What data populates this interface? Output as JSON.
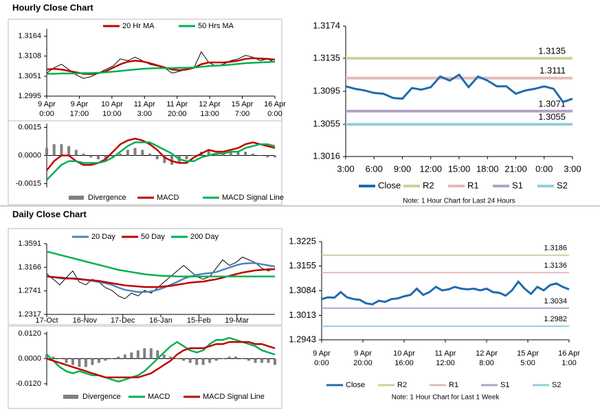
{
  "headings": [
    "Hourly Close Chart",
    "Daily Close Chart"
  ],
  "chart_data": [
    {
      "type": "line",
      "ylim": [
        1.2995,
        1.3185
      ],
      "yticks": [
        1.2995,
        1.3051,
        1.3108,
        1.3164
      ],
      "x_labels": [
        [
          "9 Apr",
          "0:00"
        ],
        [
          "9 Apr",
          "17:00"
        ],
        [
          "10 Apr",
          "10:00"
        ],
        [
          "11 Apr",
          "3:00"
        ],
        [
          "11 Apr",
          "20:00"
        ],
        [
          "12 Apr",
          "13:00"
        ],
        [
          "15 Apr",
          "7:00"
        ],
        [
          "16 Apr",
          "0:00"
        ]
      ],
      "series": [
        {
          "color": "#000000",
          "values": [
            1.306,
            1.3075,
            1.3085,
            1.307,
            1.3055,
            1.3045,
            1.305,
            1.306,
            1.307,
            1.308,
            1.31,
            1.3095,
            1.3105,
            1.3095,
            1.3085,
            1.308,
            1.3075,
            1.306,
            1.3065,
            1.307,
            1.3075,
            1.312,
            1.309,
            1.308,
            1.3085,
            1.3095,
            1.31,
            1.311,
            1.3105,
            1.3095,
            1.31,
            1.309
          ]
        },
        {
          "name": "20 Hr MA",
          "color": "#c00000",
          "values": [
            1.307,
            1.3072,
            1.307,
            1.3066,
            1.3062,
            1.3058,
            1.3057,
            1.306,
            1.3065,
            1.3075,
            1.3085,
            1.3092,
            1.3095,
            1.3093,
            1.3088,
            1.3082,
            1.3076,
            1.307,
            1.3068,
            1.307,
            1.3075,
            1.3085,
            1.309,
            1.309,
            1.309,
            1.3092,
            1.3095,
            1.31,
            1.3102,
            1.3101,
            1.31,
            1.3098
          ]
        },
        {
          "name": "50 Hrs MA",
          "color": "#00b050",
          "values": [
            1.3058,
            1.3058,
            1.3059,
            1.3059,
            1.3059,
            1.306,
            1.306,
            1.3061,
            1.3062,
            1.3064,
            1.3066,
            1.3068,
            1.307,
            1.3072,
            1.3073,
            1.3074,
            1.3074,
            1.3074,
            1.3075,
            1.3075,
            1.3076,
            1.3078,
            1.308,
            1.3081,
            1.3082,
            1.3084,
            1.3086,
            1.3088,
            1.3089,
            1.309,
            1.3091,
            1.3092
          ]
        }
      ]
    },
    {
      "type": "macd",
      "ylim": [
        -0.0017,
        0.0017
      ],
      "yticks": [
        -0.0015,
        {
          "value": 0,
          "label": "0.0000"
        },
        0.0015
      ],
      "series": [
        {
          "name": "Divergence",
          "type": "bar",
          "color": "#808080",
          "values": [
            0.0004,
            0.0006,
            0.0006,
            0.0005,
            0.0003,
            0.0001,
            -0.0001,
            -0.0002,
            -0.0002,
            -0.0001,
            0.0001,
            0.0003,
            0.0004,
            0.0003,
            0.0001,
            -0.0002,
            -0.0004,
            -0.0005,
            -0.0004,
            -0.0002,
            0,
            0.0002,
            0.0003,
            0.0001,
            0.0001,
            0.0002,
            0.0002,
            0.0002,
            0.0001,
            0,
            -0.0001,
            -0.0001
          ]
        },
        {
          "name": "MACD",
          "color": "#c00000",
          "values": [
            -0.0008,
            -0.0003,
            0,
            0,
            -0.0003,
            -0.0005,
            -0.0005,
            -0.0004,
            -0.0002,
            0.0002,
            0.0006,
            0.0008,
            0.0009,
            0.0008,
            0.0006,
            0.0003,
            -0.0001,
            -0.0003,
            -0.0004,
            -0.0004,
            -0.0001,
            0.0001,
            0.0003,
            0.0002,
            0.0002,
            0.0003,
            0.0004,
            0.0006,
            0.0007,
            0.0006,
            0.0005,
            0.0004
          ]
        },
        {
          "name": "MACD Signal Line",
          "color": "#00b050",
          "values": [
            -0.0013,
            -0.0009,
            -0.0005,
            -0.0003,
            -0.0003,
            -0.0004,
            -0.0004,
            -0.0004,
            -0.0003,
            -0.0001,
            0.0002,
            0.0005,
            0.0007,
            0.0007,
            0.0007,
            0.0005,
            0.0003,
            0.0001,
            -0.0002,
            -0.0003,
            -0.0003,
            -0.0001,
            0,
            0.0001,
            0.0001,
            0.0002,
            0.0002,
            0.0004,
            0.0005,
            0.0006,
            0.0006,
            0.0005
          ]
        }
      ]
    },
    {
      "type": "levels",
      "ylim": [
        1.3016,
        1.3174
      ],
      "yticks": [
        1.3016,
        1.3055,
        1.3095,
        1.3135,
        1.3174
      ],
      "x_labels": [
        [
          "3:00"
        ],
        [
          "6:00"
        ],
        [
          "9:00"
        ],
        [
          "12:00"
        ],
        [
          "15:00"
        ],
        [
          "18:00"
        ],
        [
          "21:00"
        ],
        [
          "0:00"
        ],
        [
          "3:00"
        ]
      ],
      "series": [
        {
          "name": "Close",
          "color": "#1f6bb0",
          "values": [
            1.3101,
            1.3098,
            1.3096,
            1.3093,
            1.3092,
            1.3087,
            1.3086,
            1.3099,
            1.3097,
            1.31,
            1.3113,
            1.3108,
            1.3115,
            1.31,
            1.3113,
            1.3108,
            1.3101,
            1.3101,
            1.3092,
            1.3096,
            1.3098,
            1.3101,
            1.3098,
            1.3082,
            1.3086
          ]
        }
      ],
      "levels": [
        {
          "name": "R2",
          "color": "#c3d69b",
          "value": 1.3135
        },
        {
          "name": "R1",
          "color": "#e6b9b8",
          "value": 1.3111
        },
        {
          "name": "S1",
          "color": "#b3a2c7",
          "value": 1.3071
        },
        {
          "name": "S2",
          "color": "#93cddd",
          "value": 1.3055
        }
      ],
      "note": "Note: 1 Hour Chart for Last 24 Hours"
    },
    {
      "type": "line",
      "ylim": [
        1.2317,
        1.3591
      ],
      "yticks": [
        1.2317,
        1.2741,
        1.3166,
        1.3591
      ],
      "x_labels": [
        [
          "17-Oct"
        ],
        [
          "16-Nov"
        ],
        [
          "17-Dec"
        ],
        [
          "16-Jan"
        ],
        [
          "15-Feb"
        ],
        [
          "19-Mar"
        ]
      ],
      "series": [
        {
          "color": "#000000",
          "values": [
            1.305,
            1.295,
            1.285,
            1.298,
            1.31,
            1.29,
            1.285,
            1.295,
            1.29,
            1.28,
            1.275,
            1.265,
            1.26,
            1.27,
            1.265,
            1.275,
            1.27,
            1.28,
            1.29,
            1.3,
            1.31,
            1.32,
            1.31,
            1.3,
            1.295,
            1.3,
            1.315,
            1.33,
            1.32,
            1.325,
            1.335,
            1.33,
            1.325,
            1.315,
            1.31,
            1.315
          ]
        },
        {
          "name": "20 Day",
          "color": "#4f81bd",
          "values": [
            1.3,
            1.299,
            1.297,
            1.296,
            1.297,
            1.296,
            1.294,
            1.292,
            1.29,
            1.288,
            1.285,
            1.28,
            1.276,
            1.274,
            1.272,
            1.272,
            1.273,
            1.276,
            1.28,
            1.285,
            1.29,
            1.296,
            1.3,
            1.303,
            1.305,
            1.306,
            1.308,
            1.312,
            1.316,
            1.32,
            1.323,
            1.324,
            1.324,
            1.322,
            1.32,
            1.318
          ]
        },
        {
          "name": "50 Day",
          "color": "#c00000",
          "values": [
            1.3,
            1.299,
            1.298,
            1.297,
            1.296,
            1.295,
            1.294,
            1.293,
            1.292,
            1.29,
            1.288,
            1.286,
            1.284,
            1.283,
            1.282,
            1.281,
            1.281,
            1.281,
            1.282,
            1.283,
            1.285,
            1.287,
            1.289,
            1.29,
            1.291,
            1.293,
            1.295,
            1.298,
            1.301,
            1.304,
            1.307,
            1.309,
            1.311,
            1.312,
            1.313,
            1.313
          ]
        },
        {
          "name": "200 Day",
          "color": "#00b050",
          "values": [
            1.345,
            1.342,
            1.339,
            1.336,
            1.333,
            1.33,
            1.327,
            1.324,
            1.321,
            1.318,
            1.315,
            1.312,
            1.31,
            1.308,
            1.306,
            1.304,
            1.303,
            1.302,
            1.301,
            1.301,
            1.3,
            1.3,
            1.3,
            1.3,
            1.3,
            1.3,
            1.3,
            1.3,
            1.3,
            1.3,
            1.3,
            1.3,
            1.3,
            1.3,
            1.3,
            1.3
          ]
        }
      ]
    },
    {
      "type": "macd",
      "ylim": [
        -0.013,
        0.013
      ],
      "yticks": [
        {
          "value": -0.012,
          "label": "-0.0120"
        },
        {
          "value": 0,
          "label": "0.0000"
        },
        {
          "value": 0.012,
          "label": "0.0120"
        }
      ],
      "series": [
        {
          "name": "Divergence",
          "type": "bar",
          "color": "#808080",
          "values": [
            0.002,
            0.001,
            0,
            -0.002,
            -0.003,
            -0.004,
            -0.004,
            -0.003,
            -0.002,
            -0.001,
            0,
            0.001,
            0.002,
            0.003,
            0.004,
            0.005,
            0.005,
            0.004,
            0.002,
            0.001,
            0,
            -0.001,
            -0.002,
            -0.003,
            -0.003,
            -0.002,
            -0.001,
            0,
            0.001,
            0.001,
            0,
            -0.001,
            -0.002,
            -0.002,
            -0.002,
            -0.003
          ]
        },
        {
          "name": "MACD",
          "color": "#00b050",
          "values": [
            0.002,
            -0.001,
            -0.004,
            -0.006,
            -0.007,
            -0.006,
            -0.007,
            -0.008,
            -0.008,
            -0.009,
            -0.01,
            -0.011,
            -0.01,
            -0.009,
            -0.008,
            -0.006,
            -0.003,
            0,
            0.003,
            0.006,
            0.008,
            0.006,
            0.004,
            0.003,
            0.004,
            0.007,
            0.009,
            0.009,
            0.01,
            0.009,
            0.008,
            0.007,
            0.006,
            0.004,
            0.003,
            0.002
          ]
        },
        {
          "name": "MACD Signal Line",
          "color": "#c00000",
          "values": [
            0,
            -0.001,
            -0.002,
            -0.003,
            -0.004,
            -0.005,
            -0.006,
            -0.007,
            -0.008,
            -0.009,
            -0.009,
            -0.009,
            -0.009,
            -0.009,
            -0.009,
            -0.008,
            -0.007,
            -0.005,
            -0.003,
            -0.001,
            0.002,
            0.004,
            0.005,
            0.005,
            0.005,
            0.006,
            0.007,
            0.007,
            0.008,
            0.008,
            0.008,
            0.008,
            0.007,
            0.007,
            0.006,
            0.005
          ]
        }
      ]
    },
    {
      "type": "levels",
      "ylim": [
        1.2943,
        1.3225
      ],
      "yticks": [
        1.2943,
        1.3013,
        1.3084,
        1.3155,
        1.3225
      ],
      "x_labels": [
        [
          "9 Apr",
          "0:00"
        ],
        [
          "9 Apr",
          "20:00"
        ],
        [
          "10 Apr",
          "16:00"
        ],
        [
          "11 Apr",
          "12:00"
        ],
        [
          "12 Apr",
          "8:00"
        ],
        [
          "15 Apr",
          "5:00"
        ],
        [
          "16 Apr",
          "1:00"
        ]
      ],
      "series": [
        {
          "name": "Close",
          "color": "#1f6bb0",
          "values": [
            1.306,
            1.3065,
            1.3064,
            1.308,
            1.3065,
            1.306,
            1.3058,
            1.3048,
            1.3045,
            1.3055,
            1.3052,
            1.306,
            1.3062,
            1.3068,
            1.3072,
            1.309,
            1.3072,
            1.308,
            1.3095,
            1.3085,
            1.3088,
            1.3095,
            1.309,
            1.3088,
            1.309,
            1.3085,
            1.309,
            1.308,
            1.3078,
            1.307,
            1.3085,
            1.311,
            1.309,
            1.3075,
            1.3095,
            1.3085,
            1.31,
            1.3105,
            1.3095,
            1.3088
          ]
        }
      ],
      "levels": [
        {
          "name": "R2",
          "color": "#c3d69b",
          "value": 1.3186
        },
        {
          "name": "R1",
          "color": "#e6b9b8",
          "value": 1.3136
        },
        {
          "name": "S1",
          "color": "#b3a2c7",
          "value": 1.3034
        },
        {
          "name": "S2",
          "color": "#93cddd",
          "value": 1.2982
        }
      ],
      "note": "Note: 1 Hour Chart for Last 1 Week"
    }
  ]
}
